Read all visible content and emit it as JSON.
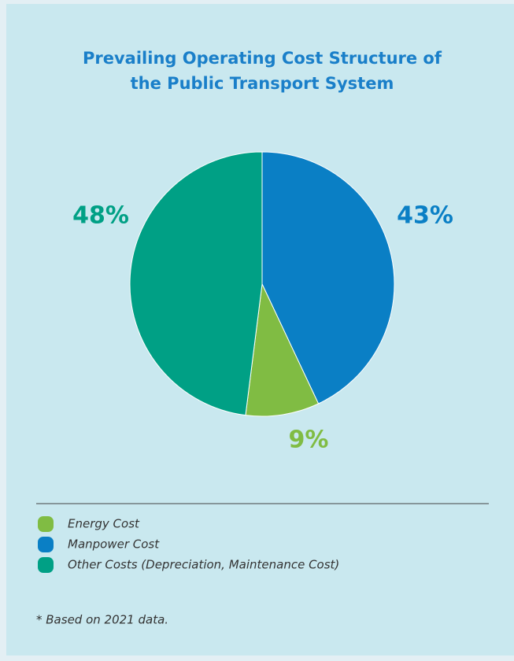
{
  "chart_data": {
    "type": "pie",
    "title_lines": [
      "Prevailing Operating Cost Structure of",
      "the Public Transport System"
    ],
    "categories": [
      "Energy Cost",
      "Manpower Cost",
      "Other Costs (Depreciation, Maintenance Cost)"
    ],
    "values": [
      9,
      43,
      48
    ],
    "value_labels": [
      "9%",
      "43%",
      "48%"
    ],
    "colors": [
      "#80bc43",
      "#0a7fc5",
      "#00a085"
    ],
    "footnote": "* Based on 2021 data."
  }
}
